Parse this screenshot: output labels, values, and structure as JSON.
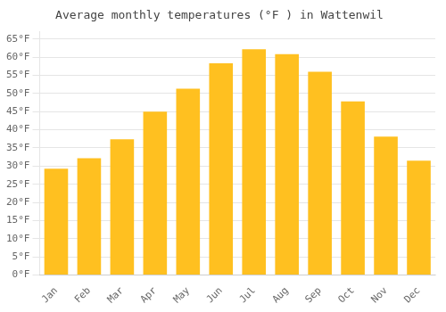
{
  "chart_data": {
    "type": "bar",
    "title": "Average monthly temperatures (°F ) in Wattenwil",
    "categories": [
      "Jan",
      "Feb",
      "Mar",
      "Apr",
      "May",
      "Jun",
      "Jul",
      "Aug",
      "Sep",
      "Oct",
      "Nov",
      "Dec"
    ],
    "values": [
      29.3,
      32.2,
      37.4,
      45.0,
      51.3,
      58.3,
      62.2,
      60.8,
      56.0,
      47.8,
      38.1,
      31.5
    ],
    "color": "#FFC020",
    "ylim": [
      0,
      67
    ],
    "yticks": [
      {
        "value": 0,
        "label": "0°F"
      },
      {
        "value": 5,
        "label": "5°F"
      },
      {
        "value": 10,
        "label": "10°F"
      },
      {
        "value": 15,
        "label": "15°F"
      },
      {
        "value": 20,
        "label": "20°F"
      },
      {
        "value": 25,
        "label": "25°F"
      },
      {
        "value": 30,
        "label": "30°F"
      },
      {
        "value": 35,
        "label": "35°F"
      },
      {
        "value": 40,
        "label": "40°F"
      },
      {
        "value": 45,
        "label": "45°F"
      },
      {
        "value": 50,
        "label": "50°F"
      },
      {
        "value": 55,
        "label": "55°F"
      },
      {
        "value": 60,
        "label": "60°F"
      },
      {
        "value": 65,
        "label": "65°F"
      }
    ],
    "grid": true
  }
}
